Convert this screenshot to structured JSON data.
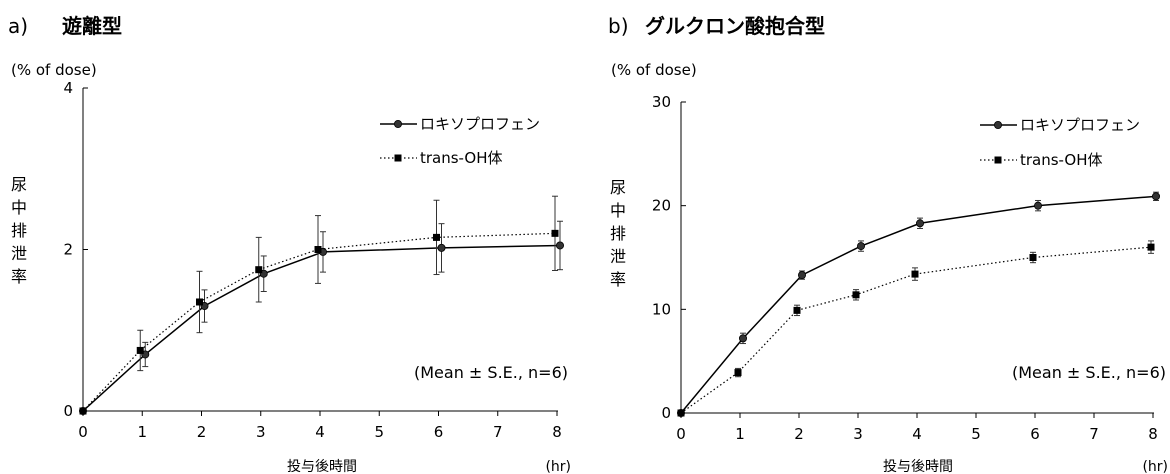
{
  "chart_data": [
    {
      "type": "line",
      "panel_label": "a)",
      "title": "遊離型",
      "y_unit": "(% of dose)",
      "ylabel": "尿中排泄率",
      "xlabel": "投与後時間",
      "x_unit": "(hr)",
      "xlim": [
        0,
        8
      ],
      "ylim": [
        0,
        4
      ],
      "x_ticks": [
        0,
        1,
        2,
        3,
        4,
        5,
        6,
        7,
        8
      ],
      "y_ticks": [
        0,
        2,
        4
      ],
      "note": "(Mean ± S.E., n=6)",
      "legend_position": "top-right",
      "series": [
        {
          "name": "ロキソプロフェン",
          "marker": "circle",
          "line": "solid",
          "x": [
            0,
            1,
            2,
            3,
            4,
            6,
            8
          ],
          "y": [
            0,
            0.7,
            1.3,
            1.7,
            1.97,
            2.02,
            2.05
          ],
          "err": [
            0,
            0.15,
            0.2,
            0.22,
            0.25,
            0.3,
            0.3
          ]
        },
        {
          "name": "trans-OH体",
          "marker": "square",
          "line": "dotted",
          "x": [
            0,
            1,
            2,
            3,
            4,
            6,
            8
          ],
          "y": [
            0,
            0.75,
            1.35,
            1.75,
            2.0,
            2.15,
            2.2
          ],
          "err": [
            0,
            0.25,
            0.38,
            0.4,
            0.42,
            0.46,
            0.46
          ]
        }
      ]
    },
    {
      "type": "line",
      "panel_label": "b)",
      "title": "グルクロン酸抱合型",
      "y_unit": "(% of dose)",
      "ylabel": "尿中排泄率",
      "xlabel": "投与後時間",
      "x_unit": "(hr)",
      "xlim": [
        0,
        8
      ],
      "ylim": [
        0,
        30
      ],
      "x_ticks": [
        0,
        1,
        2,
        3,
        4,
        5,
        6,
        7,
        8
      ],
      "y_ticks": [
        0,
        10,
        20,
        30
      ],
      "note": "(Mean ± S.E., n=6)",
      "legend_position": "top-right",
      "series": [
        {
          "name": "ロキソプロフェン",
          "marker": "circle",
          "line": "solid",
          "x": [
            0,
            1,
            2,
            3,
            4,
            6,
            8
          ],
          "y": [
            0,
            7.2,
            13.3,
            16.1,
            18.3,
            20.0,
            20.9
          ],
          "err": [
            0,
            0.5,
            0.4,
            0.5,
            0.5,
            0.5,
            0.4
          ]
        },
        {
          "name": "trans-OH体",
          "marker": "square",
          "line": "dotted",
          "x": [
            0,
            1,
            2,
            3,
            4,
            6,
            8
          ],
          "y": [
            0,
            3.9,
            9.9,
            11.4,
            13.4,
            15.0,
            16.0
          ],
          "err": [
            0,
            0.4,
            0.5,
            0.5,
            0.6,
            0.5,
            0.6
          ]
        }
      ]
    }
  ]
}
